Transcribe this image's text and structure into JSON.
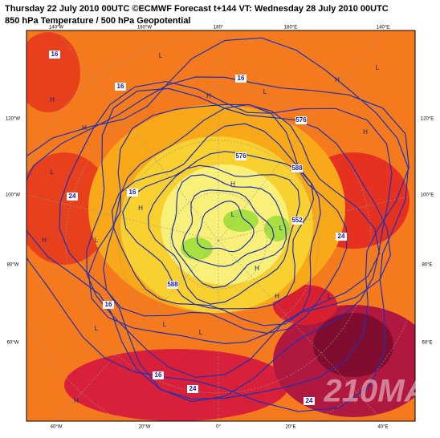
{
  "header": {
    "title": "Thursday 22 July 2010 00UTC ©ECMWF Forecast t+144 VT: Wednesday 28 July 2010 00UTC",
    "subtitle": "850 hPa Temperature / 500 hPa Geopotential"
  },
  "frame_labels": {
    "top": [
      "140°W",
      "160°W",
      "180°",
      "160°E",
      "140°E"
    ],
    "bottom": [
      "40°W",
      "20°W",
      "0°",
      "20°E",
      "40°E"
    ],
    "left": [
      "120°W",
      "100°W",
      "80°W",
      "60°W"
    ],
    "right": [
      "120°E",
      "100°E",
      "80°E",
      "60°E"
    ]
  },
  "contour_labels": [
    "16",
    "16",
    "16",
    "24",
    "16",
    "16",
    "24",
    "24",
    "24",
    "16",
    "588",
    "576",
    "552",
    "588",
    "576"
  ],
  "pressure_centers": [
    "H",
    "H",
    "L",
    "H",
    "L",
    "H",
    "L",
    "H",
    "L",
    "H",
    "L",
    "H",
    "L",
    "H",
    "L",
    "H",
    "L",
    "H",
    "L",
    "L",
    "H",
    "L"
  ],
  "watermark": "210MA"
}
